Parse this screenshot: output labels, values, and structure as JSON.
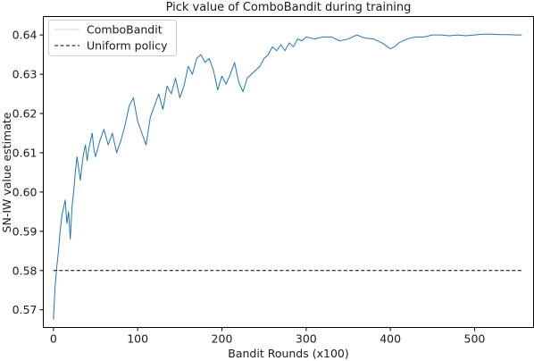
{
  "chart_data": {
    "type": "line",
    "title": "Pick value of ComboBandit during training",
    "xlabel": "Bandit Rounds (x100)",
    "ylabel": "SN-IW value estimate",
    "xlim": [
      -12,
      570
    ],
    "ylim": [
      0.5655,
      0.6447
    ],
    "xticks": [
      0,
      100,
      200,
      300,
      400,
      500
    ],
    "yticks": [
      0.57,
      0.58,
      0.59,
      0.6,
      0.61,
      0.62,
      0.63,
      0.64
    ],
    "ytick_labels": [
      "0.57",
      "0.58",
      "0.59",
      "0.60",
      "0.61",
      "0.62",
      "0.63",
      "0.64"
    ],
    "grid": false,
    "legend": "upper-left",
    "series": [
      {
        "name": "ComboBandit",
        "color": "#1f77b4",
        "style": "solid",
        "x": [
          0,
          2,
          4,
          6,
          8,
          10,
          12,
          14,
          16,
          18,
          20,
          22,
          24,
          26,
          28,
          30,
          32,
          34,
          36,
          38,
          40,
          42,
          44,
          46,
          48,
          50,
          55,
          60,
          65,
          70,
          75,
          80,
          85,
          90,
          95,
          100,
          105,
          110,
          115,
          120,
          125,
          130,
          135,
          140,
          145,
          150,
          155,
          160,
          165,
          170,
          175,
          180,
          185,
          190,
          195,
          200,
          205,
          210,
          215,
          220,
          225,
          230,
          235,
          240,
          245,
          250,
          255,
          260,
          265,
          270,
          275,
          280,
          285,
          290,
          295,
          300,
          310,
          320,
          330,
          340,
          350,
          360,
          370,
          380,
          390,
          400,
          405,
          410,
          420,
          430,
          440,
          450,
          460,
          470,
          480,
          490,
          500,
          510,
          520,
          530,
          540,
          550,
          556
        ],
        "values": [
          0.5675,
          0.576,
          0.581,
          0.585,
          0.59,
          0.594,
          0.596,
          0.598,
          0.592,
          0.595,
          0.588,
          0.596,
          0.6,
          0.605,
          0.609,
          0.606,
          0.603,
          0.607,
          0.61,
          0.612,
          0.608,
          0.611,
          0.613,
          0.615,
          0.611,
          0.609,
          0.613,
          0.616,
          0.612,
          0.615,
          0.61,
          0.613,
          0.617,
          0.622,
          0.624,
          0.618,
          0.615,
          0.612,
          0.619,
          0.622,
          0.625,
          0.621,
          0.627,
          0.625,
          0.629,
          0.624,
          0.627,
          0.632,
          0.63,
          0.634,
          0.635,
          0.633,
          0.634,
          0.631,
          0.626,
          0.6295,
          0.6275,
          0.63,
          0.633,
          0.628,
          0.6255,
          0.629,
          0.63,
          0.631,
          0.632,
          0.634,
          0.635,
          0.637,
          0.636,
          0.6375,
          0.636,
          0.638,
          0.637,
          0.639,
          0.6385,
          0.6395,
          0.639,
          0.6395,
          0.6395,
          0.6385,
          0.639,
          0.64,
          0.6392,
          0.639,
          0.638,
          0.6365,
          0.637,
          0.638,
          0.639,
          0.6395,
          0.6395,
          0.64,
          0.64,
          0.6398,
          0.64,
          0.6398,
          0.64,
          0.6402,
          0.6402,
          0.6401,
          0.6401,
          0.64,
          0.64
        ]
      },
      {
        "name": "Uniform policy",
        "color": "#000000",
        "style": "dashed",
        "x": [
          0,
          556
        ],
        "values": [
          0.58,
          0.58
        ]
      }
    ]
  }
}
